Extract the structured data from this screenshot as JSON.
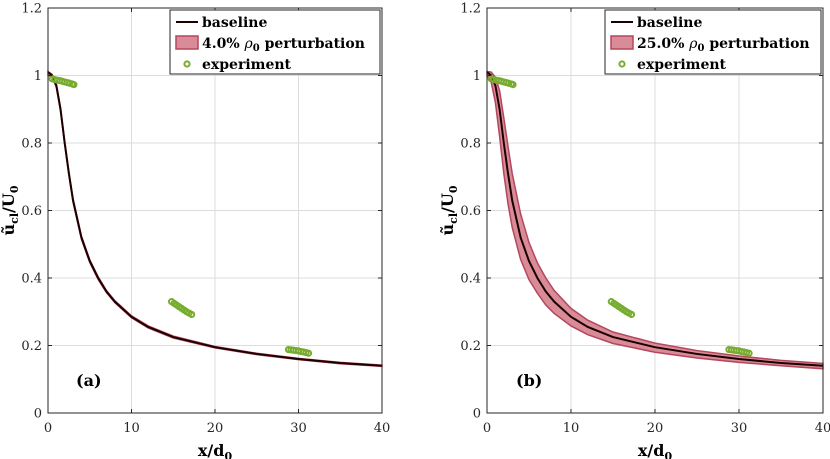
{
  "chart_data": [
    {
      "type": "line",
      "panel_label": "(a)",
      "xlabel_main": "x/d",
      "xlabel_sub": "0",
      "ylabel_main": "ũ",
      "ylabel_sub": "cl",
      "ylabel_mid": "/U",
      "ylabel_sub2": "0",
      "xlim": [
        0,
        40
      ],
      "ylim": [
        0,
        1.2
      ],
      "xticks": [
        "0",
        "10",
        "20",
        "30",
        "40"
      ],
      "yticks": [
        "0",
        "0.2",
        "0.4",
        "0.6",
        "0.8",
        "1",
        "1.2"
      ],
      "xtick_values": [
        0,
        10,
        20,
        30,
        40
      ],
      "ytick_values": [
        0,
        0.2,
        0.4,
        0.6,
        0.8,
        1.0,
        1.2
      ],
      "grid": true,
      "legend_position": "top-right",
      "legend": [
        {
          "label": "baseline",
          "kind": "line"
        },
        {
          "label_pre": "4.0% ",
          "label_rho": "ρ",
          "label_sub": "0",
          "label_post": " perturbation",
          "kind": "band"
        },
        {
          "label": "experiment",
          "kind": "marker"
        }
      ],
      "series": [
        {
          "name": "baseline",
          "x": [
            0,
            0.5,
            1,
            1.5,
            2,
            2.5,
            3,
            4,
            5,
            6,
            7,
            8,
            10,
            12,
            15,
            20,
            25,
            30,
            35,
            40
          ],
          "y": [
            1.01,
            1.0,
            0.97,
            0.9,
            0.8,
            0.71,
            0.63,
            0.52,
            0.45,
            0.4,
            0.36,
            0.33,
            0.285,
            0.255,
            0.225,
            0.195,
            0.175,
            0.16,
            0.148,
            0.14
          ]
        },
        {
          "name": "perturbation",
          "x": [
            0,
            0.5,
            1,
            1.5,
            2,
            2.5,
            3,
            4,
            5,
            6,
            7,
            8,
            10,
            12,
            15,
            20,
            25,
            30,
            35,
            40
          ],
          "y_lower": [
            1.0,
            0.995,
            0.965,
            0.895,
            0.795,
            0.705,
            0.625,
            0.515,
            0.446,
            0.396,
            0.357,
            0.327,
            0.282,
            0.252,
            0.222,
            0.193,
            0.173,
            0.158,
            0.146,
            0.138
          ],
          "y_upper": [
            1.012,
            1.003,
            0.975,
            0.905,
            0.805,
            0.715,
            0.635,
            0.525,
            0.454,
            0.404,
            0.363,
            0.333,
            0.288,
            0.258,
            0.228,
            0.197,
            0.177,
            0.162,
            0.15,
            0.142
          ]
        },
        {
          "name": "experiment",
          "x": [
            0.5,
            0.8,
            1.1,
            1.4,
            1.7,
            2.0,
            2.3,
            2.6,
            2.9,
            3.1,
            14.8,
            15.1,
            15.4,
            15.7,
            16.0,
            16.3,
            16.6,
            16.9,
            17.2,
            28.8,
            29.1,
            29.4,
            29.7,
            30.0,
            30.3,
            30.6,
            30.9,
            31.2
          ],
          "y": [
            0.99,
            0.988,
            0.986,
            0.985,
            0.983,
            0.981,
            0.979,
            0.977,
            0.975,
            0.973,
            0.33,
            0.325,
            0.32,
            0.315,
            0.31,
            0.305,
            0.3,
            0.296,
            0.292,
            0.188,
            0.187,
            0.186,
            0.185,
            0.184,
            0.182,
            0.181,
            0.179,
            0.177
          ]
        }
      ]
    },
    {
      "type": "line",
      "panel_label": "(b)",
      "xlabel_main": "x/d",
      "xlabel_sub": "0",
      "ylabel_main": "ũ",
      "ylabel_sub": "cl",
      "ylabel_mid": "/U",
      "ylabel_sub2": "0",
      "xlim": [
        0,
        40
      ],
      "ylim": [
        0,
        1.2
      ],
      "xticks": [
        "0",
        "10",
        "20",
        "30",
        "40"
      ],
      "yticks": [
        "0",
        "0.2",
        "0.4",
        "0.6",
        "0.8",
        "1",
        "1.2"
      ],
      "xtick_values": [
        0,
        10,
        20,
        30,
        40
      ],
      "ytick_values": [
        0,
        0.2,
        0.4,
        0.6,
        0.8,
        1.0,
        1.2
      ],
      "grid": true,
      "legend_position": "top-right",
      "legend": [
        {
          "label": "baseline",
          "kind": "line"
        },
        {
          "label_pre": "25.0% ",
          "label_rho": "ρ",
          "label_sub": "0",
          "label_post": " perturbation",
          "kind": "band"
        },
        {
          "label": "experiment",
          "kind": "marker"
        }
      ],
      "series": [
        {
          "name": "baseline",
          "x": [
            0,
            0.5,
            1,
            1.5,
            2,
            2.5,
            3,
            4,
            5,
            6,
            7,
            8,
            10,
            12,
            15,
            20,
            25,
            30,
            35,
            40
          ],
          "y": [
            1.01,
            1.0,
            0.97,
            0.9,
            0.8,
            0.71,
            0.63,
            0.52,
            0.45,
            0.4,
            0.36,
            0.33,
            0.285,
            0.255,
            0.225,
            0.195,
            0.175,
            0.16,
            0.148,
            0.14
          ]
        },
        {
          "name": "perturbation",
          "x": [
            0,
            0.5,
            1,
            1.5,
            2,
            2.5,
            3,
            4,
            5,
            6,
            7,
            8,
            10,
            12,
            15,
            20,
            25,
            30,
            35,
            40
          ],
          "y_lower": [
            1.0,
            0.98,
            0.92,
            0.82,
            0.71,
            0.62,
            0.55,
            0.455,
            0.395,
            0.355,
            0.32,
            0.295,
            0.258,
            0.232,
            0.206,
            0.18,
            0.163,
            0.15,
            0.14,
            0.131
          ],
          "y_upper": [
            1.012,
            1.01,
            0.995,
            0.955,
            0.875,
            0.79,
            0.71,
            0.59,
            0.505,
            0.445,
            0.4,
            0.363,
            0.31,
            0.275,
            0.24,
            0.207,
            0.185,
            0.169,
            0.156,
            0.147
          ]
        },
        {
          "name": "experiment",
          "x": [
            0.5,
            0.8,
            1.1,
            1.4,
            1.7,
            2.0,
            2.3,
            2.6,
            2.9,
            3.1,
            14.8,
            15.1,
            15.4,
            15.7,
            16.0,
            16.3,
            16.6,
            16.9,
            17.2,
            28.8,
            29.1,
            29.4,
            29.7,
            30.0,
            30.3,
            30.6,
            30.9,
            31.2
          ],
          "y": [
            0.99,
            0.988,
            0.986,
            0.985,
            0.983,
            0.981,
            0.979,
            0.977,
            0.975,
            0.973,
            0.33,
            0.325,
            0.32,
            0.315,
            0.31,
            0.305,
            0.3,
            0.296,
            0.292,
            0.188,
            0.187,
            0.186,
            0.185,
            0.184,
            0.182,
            0.181,
            0.179,
            0.177
          ]
        }
      ]
    }
  ],
  "colors": {
    "baseline": "#1a0000",
    "band_fill": "#d98b98",
    "band_edge": "#b5465c",
    "experiment": "#77ac30",
    "grid": "#dcdcdc"
  }
}
